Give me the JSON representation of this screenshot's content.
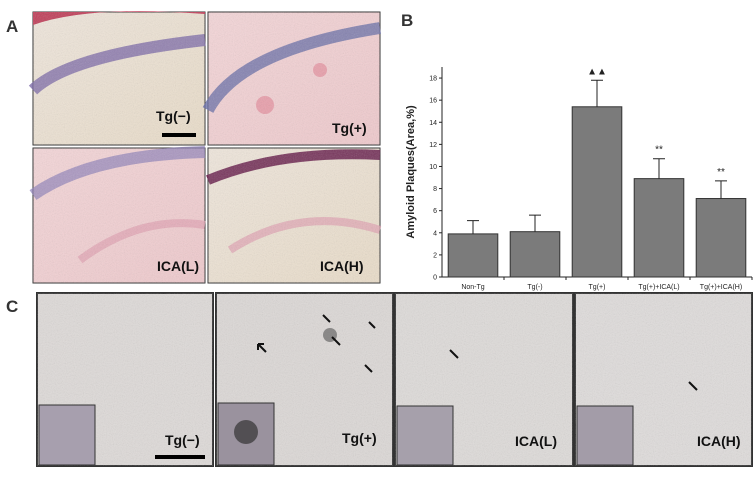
{
  "panel_a": {
    "label": "A",
    "images": [
      "Tg(−)",
      "Tg(+)",
      "ICA(L)",
      "ICA(H)"
    ]
  },
  "panel_b": {
    "label": "B"
  },
  "panel_c": {
    "label": "C",
    "images": [
      "Tg(−)",
      "Tg(+)",
      "ICA(L)",
      "ICA(H)"
    ]
  },
  "chart_data": {
    "type": "bar",
    "y_label": "Amyloid Plaques(Area,%)",
    "categories": [
      "Non-Tg",
      "Tg(-)",
      "Tg(+)",
      "Tg(+)+ICA(L)",
      "Tg(+)+ICA(H)"
    ],
    "values": [
      3.9,
      4.1,
      15.4,
      8.9,
      7.1
    ],
    "errors": [
      1.2,
      1.5,
      2.4,
      1.8,
      1.6
    ],
    "markers": [
      null,
      null,
      "▲▲",
      "**",
      "**"
    ],
    "color": "#7b7b7b",
    "ylim": [
      0,
      19
    ],
    "yticks": [
      0,
      2,
      4,
      6,
      8,
      10,
      12,
      14,
      16,
      18
    ]
  }
}
